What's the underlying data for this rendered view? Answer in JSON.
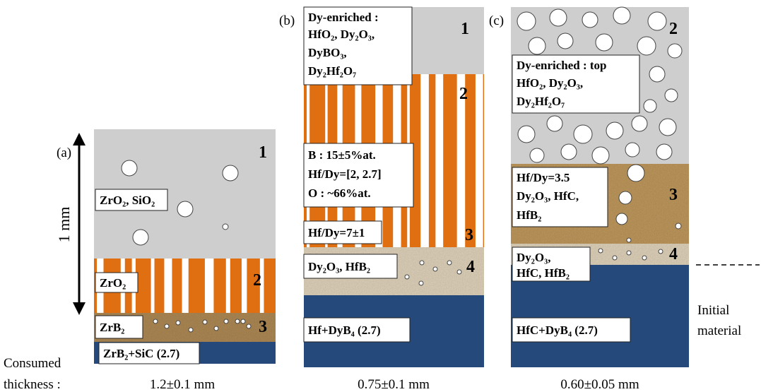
{
  "panel_a": {
    "label": "(a)",
    "scale": "1 mm",
    "layer_ids": [
      "1",
      "2",
      "3"
    ],
    "boxes": [
      "ZrO₂, SiO₂",
      "ZrO₂",
      "ZrB₂"
    ],
    "substrate": "ZrB₂+SiC (2.7)",
    "thickness": "1.2±0.1 mm"
  },
  "panel_b": {
    "label": "(b)",
    "layer_ids": [
      "1",
      "2",
      "3",
      "4"
    ],
    "box_top": [
      "Dy-enriched :",
      "HfO₂, Dy₂O₃,",
      "DyBO₃,",
      "Dy₂Hf₂O₇"
    ],
    "box_mid": [
      "B : 15±5%at.",
      "Hf/Dy=[2, 2.7]",
      "O : ~66%at."
    ],
    "box_3": "Hf/Dy=7±1",
    "box_4": "Dy₂O₃, HfB₂",
    "substrate": "Hf+DyB₄ (2.7)",
    "thickness": "0.75±0.1 mm"
  },
  "panel_c": {
    "label": "(c)",
    "layer_ids": [
      "2",
      "3",
      "4"
    ],
    "box_top": [
      "Dy-enriched : top",
      "HfO₂, Dy₂O₃,",
      "Dy₂Hf₂O₇"
    ],
    "box_3": [
      "Hf/Dy=3.5",
      "Dy₂O₃, HfC,",
      "HfB₂"
    ],
    "box_4": [
      "Dy₂O₃,",
      "HfC, HfB₂"
    ],
    "substrate": "HfC+DyB₄ (2.7)",
    "thickness": "0.60±0.05 mm"
  },
  "consumed": [
    "Consumed",
    "thickness :"
  ],
  "initial": [
    "Initial",
    "material"
  ]
}
